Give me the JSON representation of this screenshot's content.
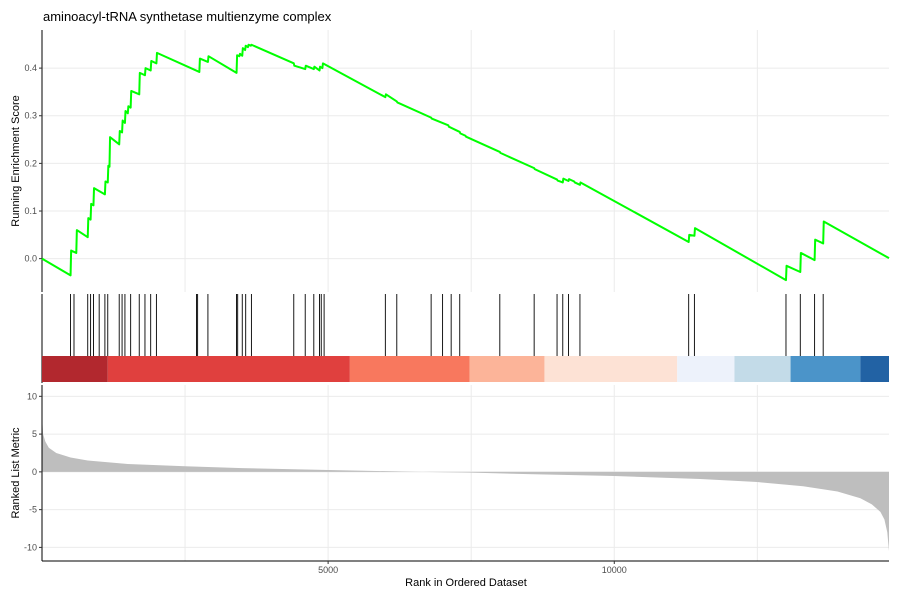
{
  "chart_data": {
    "type": "line",
    "title": "aminoacyl-tRNA synthetase multienzyme complex",
    "xlabel": "Rank in Ordered Dataset",
    "xlim": [
      1,
      14800
    ],
    "grid_vertical_at": [
      2500,
      5000,
      7500,
      10000,
      12500
    ],
    "x_ticks": [
      {
        "value": 5000,
        "label": "5000"
      },
      {
        "value": 10000,
        "label": "10000"
      }
    ],
    "grid": true,
    "panels": {
      "running_score": {
        "ylabel": "Running Enrichment Score",
        "ylim": [
          -0.07,
          0.48
        ],
        "y_ticks": [
          {
            "value": 0.0,
            "label": "0.0"
          },
          {
            "value": 0.1,
            "label": "0.1"
          },
          {
            "value": 0.2,
            "label": "0.2"
          },
          {
            "value": 0.3,
            "label": "0.3"
          },
          {
            "value": 0.4,
            "label": "0.4"
          }
        ],
        "line_color": "#00ff00",
        "series": [
          {
            "x": [
              1,
              500,
              510,
              600,
              610,
              800,
              810,
              850,
              860,
              900,
              910,
              1100,
              1110,
              1150,
              1160,
              1180,
              1190,
              1350,
              1360,
              1400,
              1410,
              1450,
              1460,
              1500,
              1510,
              1550,
              1560,
              1700,
              1710,
              1800,
              1810,
              1900,
              1910,
              2000,
              2010,
              2750,
              2760,
              2900,
              2910,
              3400,
              3410,
              3450,
              3460,
              3500,
              3510,
              3550,
              3560,
              3600,
              3610,
              3650,
              3660,
              4400,
              4410,
              4600,
              4610,
              4750,
              4760,
              4850,
              4860,
              4900,
              4910,
              6000,
              6010,
              6200,
              6210,
              6800,
              6810,
              7100,
              7110,
              7300,
              7310,
              7400,
              7410,
              8000,
              8010,
              8600,
              8610,
              9000,
              9010,
              9100,
              9110,
              9200,
              9210,
              9300,
              9310,
              9400,
              9410,
              11300,
              11310,
              11400,
              11410,
              13000,
              13010,
              13250,
              13260,
              13500,
              13510,
              13650,
              13660,
              14800
            ],
            "y": [
              0.0,
              -0.035,
              0.017,
              0.012,
              0.06,
              0.045,
              0.085,
              0.082,
              0.115,
              0.112,
              0.148,
              0.135,
              0.162,
              0.16,
              0.195,
              0.193,
              0.255,
              0.24,
              0.268,
              0.265,
              0.29,
              0.285,
              0.31,
              0.305,
              0.32,
              0.317,
              0.352,
              0.345,
              0.39,
              0.385,
              0.4,
              0.395,
              0.415,
              0.41,
              0.432,
              0.392,
              0.42,
              0.413,
              0.425,
              0.39,
              0.427,
              0.425,
              0.43,
              0.426,
              0.442,
              0.438,
              0.447,
              0.444,
              0.449,
              0.447,
              0.449,
              0.41,
              0.405,
              0.398,
              0.405,
              0.398,
              0.403,
              0.395,
              0.403,
              0.4,
              0.41,
              0.339,
              0.345,
              0.33,
              0.328,
              0.296,
              0.294,
              0.28,
              0.277,
              0.266,
              0.263,
              0.258,
              0.256,
              0.224,
              0.222,
              0.19,
              0.188,
              0.166,
              0.164,
              0.16,
              0.168,
              0.163,
              0.167,
              0.162,
              0.16,
              0.155,
              0.16,
              0.035,
              0.05,
              0.048,
              0.064,
              -0.045,
              -0.015,
              -0.028,
              0.012,
              -0.003,
              0.04,
              0.032,
              0.078,
              0.001
            ]
          }
        ]
      },
      "hits": {
        "ranks": [
          500,
          560,
          800,
          850,
          900,
          1000,
          1100,
          1150,
          1350,
          1400,
          1450,
          1550,
          1700,
          1800,
          1900,
          2000,
          2700,
          2720,
          2900,
          3400,
          3420,
          3500,
          3560,
          3660,
          4400,
          4600,
          4750,
          4850,
          4880,
          4930,
          6000,
          6200,
          6800,
          7000,
          7150,
          7300,
          8000,
          8600,
          9000,
          9100,
          9200,
          9400,
          11300,
          11400,
          13000,
          13250,
          13500,
          13650
        ]
      },
      "color_bar": {
        "bins": [
          {
            "start": 1,
            "end": 1150,
            "color": "#b2282e"
          },
          {
            "start": 1150,
            "end": 5380,
            "color": "#e0403e"
          },
          {
            "start": 5380,
            "end": 7470,
            "color": "#f8785e"
          },
          {
            "start": 7470,
            "end": 8780,
            "color": "#fcb499"
          },
          {
            "start": 8780,
            "end": 11100,
            "color": "#fde2d5"
          },
          {
            "start": 11100,
            "end": 12100,
            "color": "#edf2fb"
          },
          {
            "start": 12100,
            "end": 13080,
            "color": "#c3dbe8"
          },
          {
            "start": 13080,
            "end": 14300,
            "color": "#4b94c9"
          },
          {
            "start": 14300,
            "end": 14800,
            "color": "#2262a4"
          }
        ]
      },
      "ranked_metric": {
        "ylabel": "Ranked List Metric",
        "ylim": [
          -11.8,
          11.5
        ],
        "y_ticks": [
          {
            "value": 10,
            "label": "10"
          },
          {
            "value": 5,
            "label": "5"
          },
          {
            "value": 0,
            "label": "0"
          },
          {
            "value": -5,
            "label": "-5"
          },
          {
            "value": -10,
            "label": "-10"
          }
        ],
        "fill_color": "#bebebe",
        "series": [
          {
            "x": [
              1,
              20,
              60,
              120,
              250,
              500,
              800,
              1500,
              2500,
              3500,
              5000,
              6500,
              7500,
              8500,
              10000,
              11500,
              12500,
              13300,
              13900,
              14300,
              14500,
              14650,
              14720,
              14770,
              14800
            ],
            "y": [
              7.5,
              5.0,
              4.0,
              3.2,
              2.5,
              1.9,
              1.5,
              1.05,
              0.75,
              0.5,
              0.25,
              0.02,
              -0.1,
              -0.3,
              -0.55,
              -0.95,
              -1.35,
              -1.9,
              -2.6,
              -3.5,
              -4.3,
              -5.3,
              -6.3,
              -8.0,
              -10.5
            ]
          }
        ]
      }
    }
  }
}
